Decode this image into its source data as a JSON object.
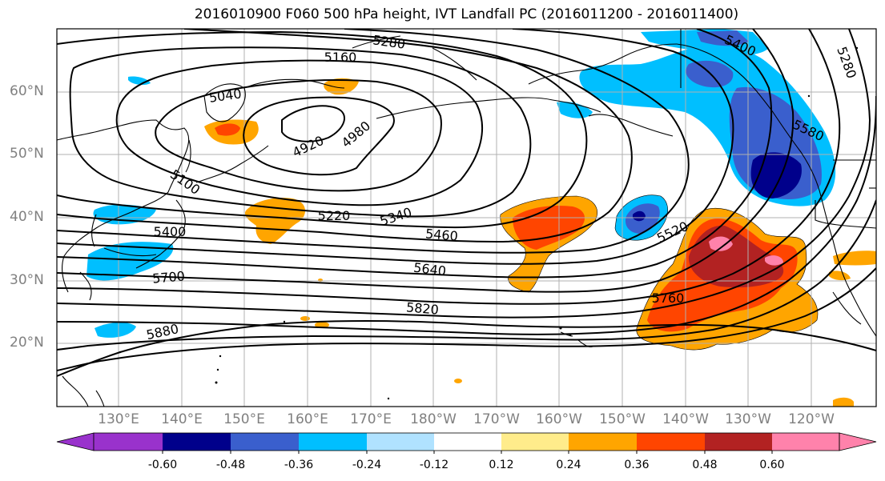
{
  "title": "2016010900 F060 500 hPa height, IVT Landfall PC (2016011200 - 2016011400)",
  "lat_labels": [
    "60°N",
    "50°N",
    "40°N",
    "30°N",
    "20°N"
  ],
  "lon_labels": [
    "130°E",
    "140°E",
    "150°E",
    "160°E",
    "170°E",
    "180°W",
    "170°W",
    "160°W",
    "150°W",
    "140°W",
    "130°W",
    "120°W"
  ],
  "contour_labels": [
    "5280",
    "5160",
    "5040",
    "4920",
    "4980",
    "5100",
    "5220",
    "5340",
    "5400",
    "5460",
    "5520",
    "5580",
    "5640",
    "5700",
    "5760",
    "5820",
    "5880"
  ],
  "colorbar": {
    "ticks": [
      "-0.60",
      "-0.48",
      "-0.36",
      "-0.24",
      "-0.12",
      "0.12",
      "0.24",
      "0.36",
      "0.48",
      "0.60"
    ],
    "colors": [
      "#9932cc",
      "#00008b",
      "#3a5fcd",
      "#00bfff",
      "#b0e2ff",
      "#ffffff",
      "#ffec8b",
      "#ffa500",
      "#ff4500",
      "#b22222",
      "#ff82ab"
    ]
  }
}
